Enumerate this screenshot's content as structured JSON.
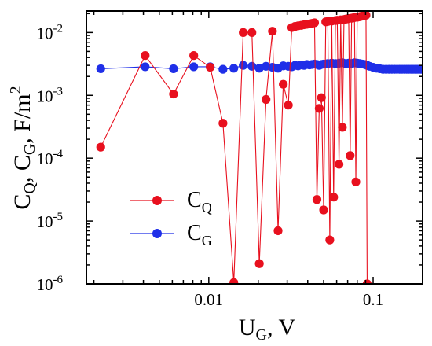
{
  "chart_data": {
    "type": "scatter",
    "title": "",
    "xlabel": "U_G, V",
    "ylabel": "C_Q, C_G, F/m^2",
    "x_scale": "log",
    "y_scale": "log",
    "xlim": [
      0.0018,
      0.2
    ],
    "ylim": [
      1e-06,
      0.022
    ],
    "grid": false,
    "legend": "center-left",
    "x_ticks": [
      {
        "value": 0.01,
        "label": "0.01"
      },
      {
        "value": 0.1,
        "label": "0.1"
      }
    ],
    "y_ticks": [
      {
        "value": 1e-06,
        "base": "10",
        "exp": "-6"
      },
      {
        "value": 1e-05,
        "base": "10",
        "exp": "-5"
      },
      {
        "value": 0.0001,
        "base": "10",
        "exp": "-4"
      },
      {
        "value": 0.001,
        "base": "10",
        "exp": "-3"
      },
      {
        "value": 0.01,
        "base": "10",
        "exp": "-2"
      }
    ],
    "axis_labels": {
      "x": {
        "main": "U",
        "sub": "G",
        "tail": ", V"
      },
      "y": {
        "p1": "C",
        "s1": "Q",
        "p2": ", C",
        "s2": "G",
        "p3": ", F/m",
        "sup": "2"
      }
    },
    "series": [
      {
        "name": "C_Q",
        "legend_main": "C",
        "legend_sub": "Q",
        "color": "#e8101e",
        "x": [
          0.0022,
          0.0041,
          0.0061,
          0.0081,
          0.0102,
          0.0122,
          0.0142,
          0.0162,
          0.0183,
          0.0203,
          0.0223,
          0.0244,
          0.0264,
          0.0284,
          0.0305,
          0.032,
          0.0335,
          0.035,
          0.0365,
          0.038,
          0.0395,
          0.041,
          0.0425,
          0.044,
          0.0455,
          0.047,
          0.0485,
          0.05,
          0.0515,
          0.053,
          0.0545,
          0.056,
          0.0575,
          0.059,
          0.0605,
          0.062,
          0.0635,
          0.065,
          0.0665,
          0.068,
          0.0695,
          0.071,
          0.0725,
          0.074,
          0.0755,
          0.077,
          0.0785,
          0.08,
          0.0815,
          0.083,
          0.0845,
          0.086,
          0.0875,
          0.089,
          0.0905,
          0.092
        ],
        "y": [
          0.00015,
          0.0043,
          0.00105,
          0.0043,
          0.0028,
          0.00036,
          1.05e-06,
          0.01,
          0.01,
          2.1e-06,
          0.00086,
          0.0105,
          7e-06,
          0.0015,
          0.0007,
          0.012,
          0.0125,
          0.0128,
          0.013,
          0.0133,
          0.0135,
          0.0137,
          0.014,
          0.0143,
          2.2e-05,
          0.00062,
          0.00092,
          1.5e-05,
          0.0148,
          0.015,
          5e-06,
          0.0152,
          2.4e-05,
          0.0155,
          0.0157,
          8e-05,
          0.0159,
          0.00031,
          0.0161,
          0.0163,
          0.0165,
          0.0167,
          0.00011,
          0.0169,
          0.0171,
          0.0173,
          4.2e-05,
          0.0175,
          0.0177,
          0.0179,
          0.0181,
          0.0183,
          0.0185,
          0.0187,
          0.0189,
          1e-06
        ]
      },
      {
        "name": "C_G",
        "legend_main": "C",
        "legend_sub": "G",
        "color": "#1f2fe8",
        "x": [
          0.0022,
          0.0041,
          0.0061,
          0.0081,
          0.0102,
          0.0122,
          0.0142,
          0.0162,
          0.0183,
          0.0203,
          0.0223,
          0.0244,
          0.0264,
          0.0284,
          0.0305,
          0.032,
          0.0335,
          0.035,
          0.0365,
          0.038,
          0.0395,
          0.041,
          0.0425,
          0.044,
          0.0455,
          0.047,
          0.0485,
          0.05,
          0.053,
          0.056,
          0.059,
          0.062,
          0.065,
          0.068,
          0.071,
          0.074,
          0.077,
          0.08,
          0.083,
          0.086,
          0.089,
          0.092,
          0.095,
          0.1,
          0.105,
          0.11,
          0.115,
          0.12,
          0.125,
          0.13,
          0.135,
          0.14,
          0.145,
          0.15,
          0.155,
          0.16,
          0.165,
          0.17,
          0.175,
          0.18,
          0.185,
          0.19,
          0.195,
          0.2
        ],
        "y": [
          0.00265,
          0.00285,
          0.00265,
          0.00285,
          0.00285,
          0.0026,
          0.0027,
          0.003,
          0.0029,
          0.0027,
          0.0029,
          0.0028,
          0.0027,
          0.00295,
          0.0029,
          0.00285,
          0.003,
          0.00295,
          0.00305,
          0.003,
          0.0031,
          0.00305,
          0.0031,
          0.00315,
          0.0031,
          0.003,
          0.0031,
          0.00315,
          0.0032,
          0.00325,
          0.0032,
          0.00325,
          0.0033,
          0.0032,
          0.00325,
          0.0032,
          0.0033,
          0.00325,
          0.0032,
          0.00315,
          0.0031,
          0.003,
          0.0029,
          0.0028,
          0.0027,
          0.00265,
          0.0026,
          0.0026,
          0.0026,
          0.0026,
          0.0026,
          0.0026,
          0.0026,
          0.0026,
          0.0026,
          0.0026,
          0.0026,
          0.0026,
          0.0026,
          0.0026,
          0.0026,
          0.0026,
          0.0026,
          0.0026
        ]
      }
    ]
  }
}
